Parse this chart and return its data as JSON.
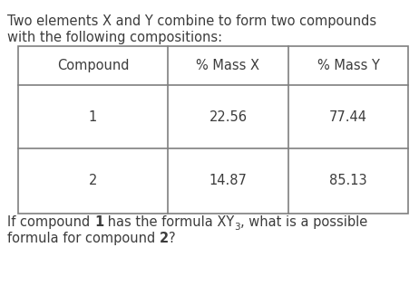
{
  "title_line1": "Two elements X and Y combine to form two compounds",
  "title_line2": "with the following compositions:",
  "col_headers": [
    "Compound",
    "% Mass X",
    "% Mass Y"
  ],
  "row1": [
    "1",
    "22.56",
    "77.44"
  ],
  "row2": [
    "2",
    "14.87",
    "85.13"
  ],
  "bg_color": "#ffffff",
  "text_color": "#3c3c3c",
  "table_border_color": "#7f7f7f",
  "font_size": 10.5,
  "font_size_small": 7.5
}
